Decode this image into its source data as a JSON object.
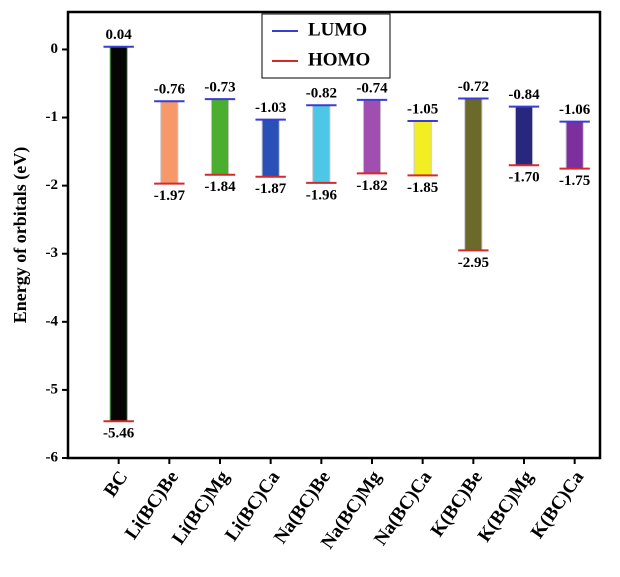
{
  "chart_data": {
    "type": "floating-bar",
    "y_label": "Energy of orbitals (eV)",
    "categories": [
      "BC",
      "Li(BC)Be",
      "Li(BC)Mg",
      "Li(BC)Ca",
      "Na(BC)Be",
      "Na(BC)Mg",
      "Na(BC)Ca",
      "K(BC)Be",
      "K(BC)Mg",
      "K(BC)Ca"
    ],
    "bar_colors": [
      "#050505",
      "#f7986a",
      "#4cae2e",
      "#2a50b8",
      "#4ec6e6",
      "#a04fb0",
      "#f2ee22",
      "#6c6a2a",
      "#27277e",
      "#7e2f9e"
    ],
    "series": [
      {
        "name": "LUMO",
        "color": "#3b3bd6",
        "values": [
          0.04,
          -0.76,
          -0.73,
          -1.03,
          -0.82,
          -0.74,
          -1.05,
          -0.72,
          -0.84,
          -1.06
        ],
        "value_labels": [
          "0.04",
          "-0.76",
          "-0.73",
          "-1.03",
          "-0.82",
          "-0.74",
          "-1.05",
          "-0.72",
          "-0.84",
          "-1.06"
        ]
      },
      {
        "name": "HOMO",
        "color": "#d62a2a",
        "values": [
          -5.46,
          -1.97,
          -1.84,
          -1.87,
          -1.96,
          -1.82,
          -1.85,
          -2.95,
          -1.7,
          -1.75
        ],
        "value_labels": [
          "-5.46",
          "-1.97",
          "-1.84",
          "-1.87",
          "-1.96",
          "-1.82",
          "-1.85",
          "-2.95",
          "-1.70",
          "-1.75"
        ]
      }
    ],
    "ylim": [
      -6,
      0.55
    ],
    "yticks": [
      -6,
      -5,
      -4,
      -3,
      -2,
      -1,
      0
    ],
    "legend": "top-center"
  }
}
